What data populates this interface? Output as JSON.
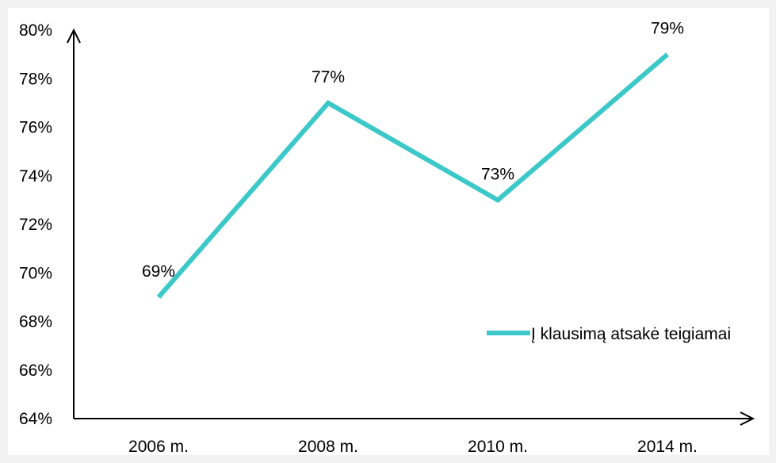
{
  "chart_data": {
    "type": "line",
    "title": "",
    "xlabel": "",
    "ylabel": "",
    "categories": [
      "2006 m.",
      "2008 m.",
      "2010 m.",
      "2014 m."
    ],
    "y_ticks": [
      "64%",
      "66%",
      "68%",
      "70%",
      "72%",
      "74%",
      "76%",
      "78%",
      "80%"
    ],
    "y_tick_values": [
      64,
      66,
      68,
      70,
      72,
      74,
      76,
      78,
      80
    ],
    "ylim": [
      64,
      80
    ],
    "grid": false,
    "legend_position": "right",
    "series": [
      {
        "name": "Į klausimą atsakė teigiamai",
        "values": [
          69,
          77,
          73,
          79
        ],
        "labels": [
          "69%",
          "77%",
          "73%",
          "79%"
        ],
        "color": "#3cc8c8"
      }
    ],
    "axis_color": "#000000"
  }
}
